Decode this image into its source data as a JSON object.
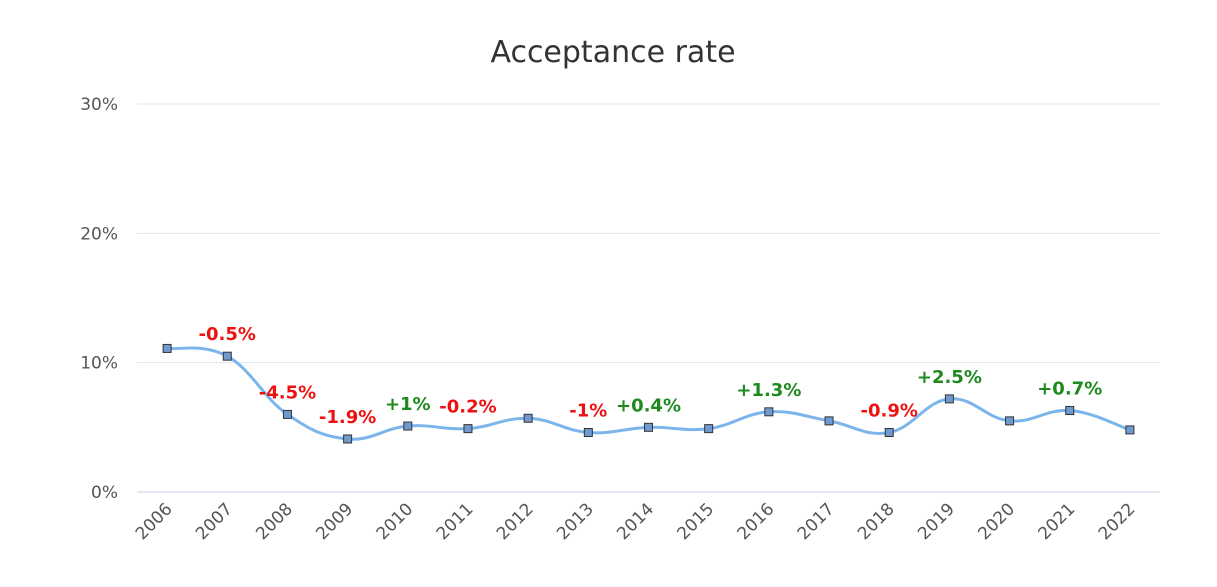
{
  "chart_data": {
    "type": "line",
    "title": "Acceptance rate",
    "xlabel": "",
    "ylabel": "",
    "categories": [
      "2006",
      "2007",
      "2008",
      "2009",
      "2010",
      "2011",
      "2012",
      "2013",
      "2014",
      "2015",
      "2016",
      "2017",
      "2018",
      "2019",
      "2020",
      "2021",
      "2022"
    ],
    "series": [
      {
        "values": [
          11.1,
          10.5,
          6.0,
          4.1,
          5.1,
          4.9,
          5.7,
          4.6,
          5.0,
          4.9,
          6.2,
          5.5,
          4.6,
          7.2,
          5.5,
          6.3,
          4.8
        ],
        "data_labels": [
          "",
          "-0.5%",
          "-4.5%",
          "-1.9%",
          "+1%",
          "-0.2%",
          "",
          "-1%",
          "+0.4%",
          "",
          "+1.3%",
          "",
          "-0.9%",
          "+2.5%",
          "",
          "+0.7%",
          ""
        ]
      }
    ],
    "ylim": [
      0,
      30
    ],
    "yticks": [
      0,
      10,
      20,
      30
    ],
    "ytick_labels": [
      "0%",
      "10%",
      "20%",
      "30%"
    ],
    "grid": true,
    "colors": {
      "line": "#7cb5ec",
      "marker_fill": "#6f9ad0",
      "marker_stroke": "#333333",
      "positive": "#1e8a1e",
      "negative": "#ee1111",
      "grid": "#e3e6ea",
      "axis": "#c8d0e0"
    }
  }
}
